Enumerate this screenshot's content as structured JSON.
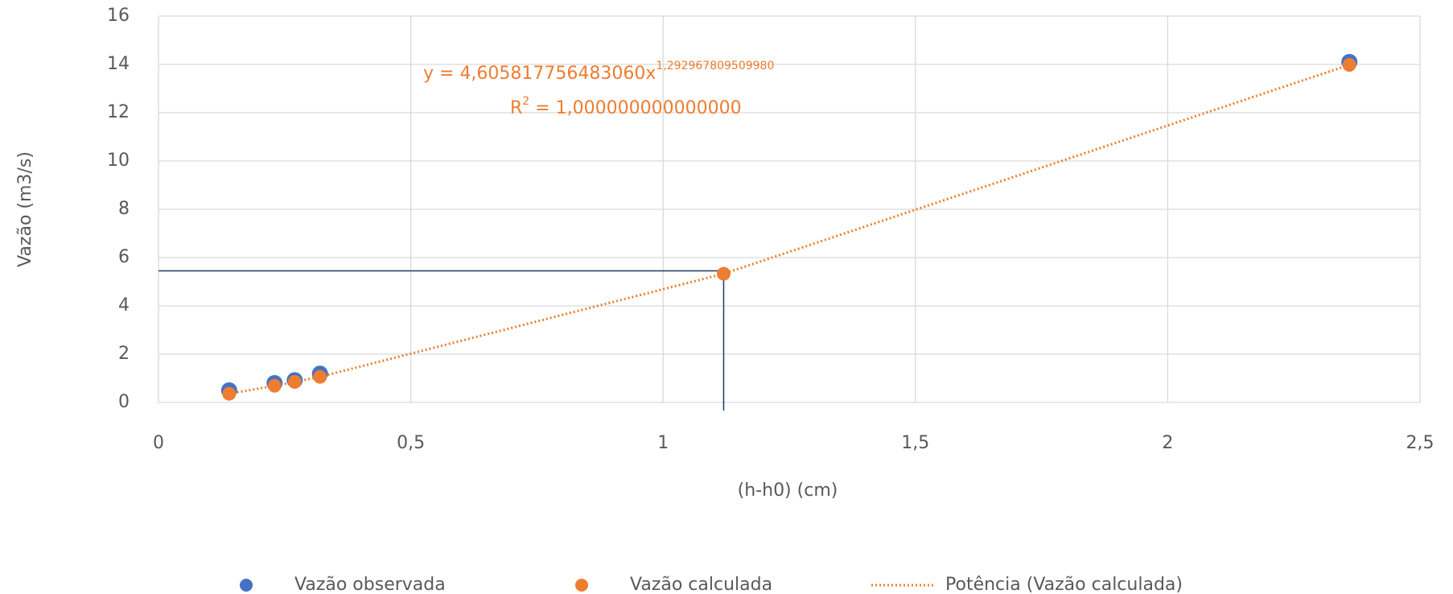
{
  "chart_data": {
    "type": "scatter",
    "x_label": "(h-h0) (cm)",
    "y_label": "Vazão (m3/s)",
    "series": [
      {
        "name": "Vazão observada",
        "color": "#4472c4",
        "x": [
          0.14,
          0.23,
          0.27,
          0.32,
          2.36
        ],
        "values": [
          0.5,
          0.8,
          0.92,
          1.19,
          14.1
        ]
      },
      {
        "name": "Vazão calculada",
        "color": "#ed7d31",
        "x": [
          0.14,
          0.23,
          0.27,
          0.32,
          1.12,
          2.36
        ],
        "values": [
          0.36,
          0.69,
          0.85,
          1.06,
          5.33,
          13.98
        ]
      }
    ],
    "trendline": {
      "name": "Potência (Vazão calculada)",
      "color": "#ed7d31",
      "equation": "y = 4,605817756483060x",
      "exponent": "1,292967809509980",
      "r2_prefix": "R",
      "r2_power": "2",
      "r2_rest": " = 1,000000000000000"
    },
    "guide": {
      "x": 1.12,
      "y": 5.45,
      "color": "#1f3864"
    },
    "xlim": [
      0,
      2.5
    ],
    "xticks": [
      0,
      {
        "value": 0.5,
        "label": "0,5"
      },
      1,
      {
        "value": 1.5,
        "label": "1,5"
      },
      2,
      {
        "value": 2.5,
        "label": "2,5"
      }
    ],
    "ylim": [
      0,
      16
    ],
    "yticks": [
      0,
      2,
      4,
      6,
      8,
      10,
      12,
      14,
      16
    ],
    "grid": true
  }
}
